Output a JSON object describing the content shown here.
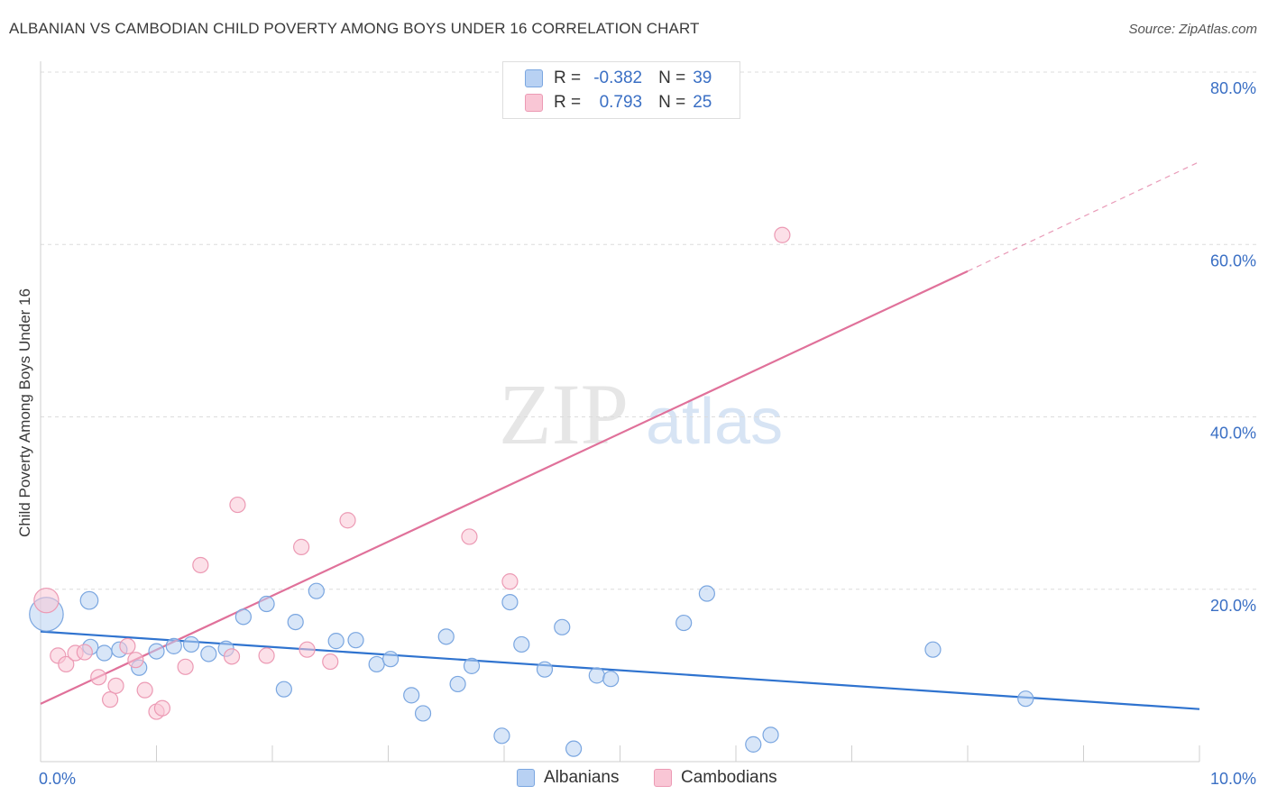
{
  "title": "ALBANIAN VS CAMBODIAN CHILD POVERTY AMONG BOYS UNDER 16 CORRELATION CHART",
  "source": "Source: ZipAtlas.com",
  "watermark": {
    "zip": "ZIP",
    "atlas": "atlas"
  },
  "colors": {
    "albanian_fill": "#b8d1f3",
    "albanian_stroke": "#7aa6e0",
    "albanian_line": "#2f73cf",
    "cambodian_fill": "#f9c6d5",
    "cambodian_stroke": "#ec9ab4",
    "cambodian_line": "#e0719a",
    "tick_text": "#3a6fc4",
    "grid": "#dcdcdc"
  },
  "legend": {
    "rows": [
      {
        "r_label": "R =",
        "r_value": "-0.382",
        "n_label": "N =",
        "n_value": "39"
      },
      {
        "r_label": "R =",
        "r_value": "0.793",
        "n_label": "N =",
        "n_value": "25"
      }
    ]
  },
  "bottom_legend": [
    "Albanians",
    "Cambodians"
  ],
  "chart_data": {
    "type": "scatter",
    "title": "ALBANIAN VS CAMBODIAN CHILD POVERTY AMONG BOYS UNDER 16 CORRELATION CHART",
    "xlabel": "",
    "ylabel": "Child Poverty Among Boys Under 16",
    "xlim": [
      0,
      10
    ],
    "ylim": [
      0,
      80
    ],
    "x_tick_labels": [
      "0.0%",
      "10.0%"
    ],
    "y_ticks": [
      20,
      40,
      60,
      80
    ],
    "y_tick_labels": [
      "20.0%",
      "40.0%",
      "60.0%",
      "80.0%"
    ],
    "grid": true,
    "legend_position": "top-center",
    "series": [
      {
        "name": "Albanians",
        "r": -0.382,
        "n": 39,
        "points": [
          {
            "x": 0.05,
            "y": 17.1,
            "s": 2.2
          },
          {
            "x": 0.42,
            "y": 18.7,
            "s": 1.15
          },
          {
            "x": 0.43,
            "y": 13.3,
            "s": 1.0
          },
          {
            "x": 0.55,
            "y": 12.6,
            "s": 1.0
          },
          {
            "x": 0.68,
            "y": 13.0,
            "s": 1.0
          },
          {
            "x": 0.85,
            "y": 10.9,
            "s": 1.0
          },
          {
            "x": 1.0,
            "y": 12.8,
            "s": 1.0
          },
          {
            "x": 1.15,
            "y": 13.4,
            "s": 1.0
          },
          {
            "x": 1.3,
            "y": 13.6,
            "s": 1.0
          },
          {
            "x": 1.45,
            "y": 12.5,
            "s": 1.0
          },
          {
            "x": 1.6,
            "y": 13.1,
            "s": 1.0
          },
          {
            "x": 1.75,
            "y": 16.8,
            "s": 1.0
          },
          {
            "x": 1.95,
            "y": 18.3,
            "s": 1.0
          },
          {
            "x": 2.1,
            "y": 8.4,
            "s": 1.0
          },
          {
            "x": 2.2,
            "y": 16.2,
            "s": 1.0
          },
          {
            "x": 2.38,
            "y": 19.8,
            "s": 1.0
          },
          {
            "x": 2.55,
            "y": 14.0,
            "s": 1.0
          },
          {
            "x": 2.72,
            "y": 14.1,
            "s": 1.0
          },
          {
            "x": 2.9,
            "y": 11.3,
            "s": 1.0
          },
          {
            "x": 3.02,
            "y": 11.9,
            "s": 1.0
          },
          {
            "x": 3.2,
            "y": 7.7,
            "s": 1.0
          },
          {
            "x": 3.3,
            "y": 5.6,
            "s": 1.0
          },
          {
            "x": 3.5,
            "y": 14.5,
            "s": 1.0
          },
          {
            "x": 3.6,
            "y": 9.0,
            "s": 1.0
          },
          {
            "x": 3.72,
            "y": 11.1,
            "s": 1.0
          },
          {
            "x": 3.98,
            "y": 3.0,
            "s": 1.0
          },
          {
            "x": 4.05,
            "y": 18.5,
            "s": 1.0
          },
          {
            "x": 4.15,
            "y": 13.6,
            "s": 1.0
          },
          {
            "x": 4.35,
            "y": 10.7,
            "s": 1.0
          },
          {
            "x": 4.5,
            "y": 15.6,
            "s": 1.0
          },
          {
            "x": 4.6,
            "y": 1.5,
            "s": 1.0
          },
          {
            "x": 4.8,
            "y": 10.0,
            "s": 1.0
          },
          {
            "x": 4.92,
            "y": 9.6,
            "s": 1.0
          },
          {
            "x": 5.55,
            "y": 16.1,
            "s": 1.0
          },
          {
            "x": 5.75,
            "y": 19.5,
            "s": 1.0
          },
          {
            "x": 6.15,
            "y": 2.0,
            "s": 1.0
          },
          {
            "x": 6.3,
            "y": 3.1,
            "s": 1.0
          },
          {
            "x": 7.7,
            "y": 13.0,
            "s": 1.0
          },
          {
            "x": 8.5,
            "y": 7.3,
            "s": 1.0
          }
        ],
        "trend": {
          "x_start": 0,
          "y_start": 15.1,
          "x_end": 10,
          "y_end": 6.1
        }
      },
      {
        "name": "Cambodians",
        "r": 0.793,
        "n": 25,
        "points": [
          {
            "x": 0.05,
            "y": 18.7,
            "s": 1.6
          },
          {
            "x": 0.15,
            "y": 12.3,
            "s": 1.0
          },
          {
            "x": 0.22,
            "y": 11.3,
            "s": 1.0
          },
          {
            "x": 0.3,
            "y": 12.6,
            "s": 1.0
          },
          {
            "x": 0.38,
            "y": 12.7,
            "s": 1.0
          },
          {
            "x": 0.5,
            "y": 9.8,
            "s": 1.0
          },
          {
            "x": 0.6,
            "y": 7.2,
            "s": 1.0
          },
          {
            "x": 0.65,
            "y": 8.8,
            "s": 1.0
          },
          {
            "x": 0.75,
            "y": 13.4,
            "s": 1.0
          },
          {
            "x": 0.82,
            "y": 11.8,
            "s": 1.0
          },
          {
            "x": 0.9,
            "y": 8.3,
            "s": 1.0
          },
          {
            "x": 1.0,
            "y": 5.8,
            "s": 1.0
          },
          {
            "x": 1.05,
            "y": 6.2,
            "s": 1.0
          },
          {
            "x": 1.25,
            "y": 11.0,
            "s": 1.0
          },
          {
            "x": 1.38,
            "y": 22.8,
            "s": 1.0
          },
          {
            "x": 1.65,
            "y": 12.2,
            "s": 1.0
          },
          {
            "x": 1.7,
            "y": 29.8,
            "s": 1.0
          },
          {
            "x": 1.95,
            "y": 12.3,
            "s": 1.0
          },
          {
            "x": 2.25,
            "y": 24.9,
            "s": 1.0
          },
          {
            "x": 2.3,
            "y": 13.0,
            "s": 1.0
          },
          {
            "x": 2.5,
            "y": 11.6,
            "s": 1.0
          },
          {
            "x": 2.65,
            "y": 28.0,
            "s": 1.0
          },
          {
            "x": 3.7,
            "y": 26.1,
            "s": 1.0
          },
          {
            "x": 4.05,
            "y": 20.9,
            "s": 1.0
          },
          {
            "x": 6.4,
            "y": 61.1,
            "s": 1.0
          }
        ],
        "trend": {
          "x_start": 0,
          "y_start": 6.7,
          "x_end": 8.0,
          "y_end": 56.9,
          "dash_to_x": 10,
          "dash_to_y": 69.6
        }
      }
    ]
  }
}
